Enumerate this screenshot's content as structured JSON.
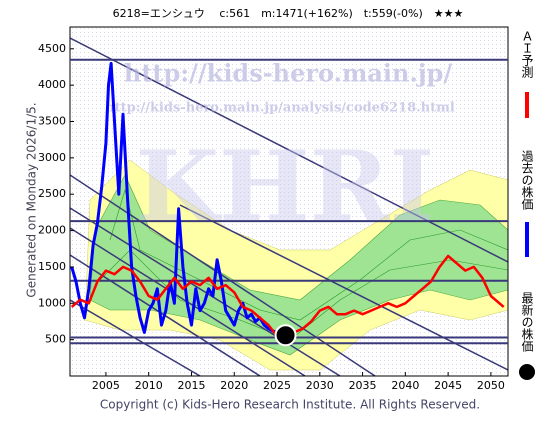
{
  "chart_data": {
    "type": "line",
    "title": "6218=エンシュウ　 c:561　m:1471(+162%)　t:559(-0%)　★★★",
    "side_note": "Generated on Monday 2026/1/5.",
    "footer": "Copyright (c) Kids-Hero Research Institute. All Rights Reserved.",
    "watermarks": [
      "http://kids-hero.main.jp/",
      "http://kids-hero.main.jp/analysis/code6218.html",
      "KHRI"
    ],
    "xlim": [
      2000.8,
      2052
    ],
    "xticks": [
      2005,
      2010,
      2015,
      2020,
      2025,
      2030,
      2035,
      2040,
      2045,
      2050
    ],
    "ylim": [
      0,
      4800
    ],
    "yticks": [
      500,
      1000,
      1500,
      2000,
      2500,
      3000,
      3500,
      4000,
      4500
    ],
    "hlines": [
      4350,
      2130,
      1310,
      530,
      450
    ],
    "hline_color": "#3a3a7a",
    "series": [
      {
        "name": "ＡＩ予測",
        "color": "#ff0000",
        "x": [
          2001,
          2002,
          2003,
          2004,
          2005,
          2006,
          2007,
          2008,
          2009,
          2010,
          2011,
          2012,
          2013,
          2014,
          2015,
          2016,
          2017,
          2018,
          2019,
          2020,
          2021,
          2022,
          2023,
          2024,
          2025,
          2026,
          2027,
          2028,
          2029,
          2030,
          2031,
          2032,
          2033,
          2034,
          2035,
          2036,
          2037,
          2038,
          2039,
          2040,
          2041,
          2042,
          2043,
          2044,
          2045,
          2046,
          2047,
          2048,
          2049,
          2050,
          2051.5
        ],
        "values": [
          950,
          1050,
          1000,
          1300,
          1450,
          1400,
          1500,
          1450,
          1300,
          1100,
          1050,
          1200,
          1350,
          1200,
          1300,
          1250,
          1350,
          1200,
          1250,
          1150,
          950,
          900,
          800,
          700,
          550,
          500,
          600,
          650,
          750,
          900,
          950,
          850,
          850,
          900,
          850,
          900,
          950,
          1000,
          950,
          1000,
          1100,
          1200,
          1300,
          1500,
          1650,
          1550,
          1450,
          1500,
          1350,
          1100,
          950
        ]
      },
      {
        "name": "過去の株価",
        "color": "#0000ff",
        "x": [
          2001,
          2001.5,
          2002,
          2002.5,
          2003,
          2003.5,
          2004,
          2004.5,
          2005,
          2005.3,
          2005.6,
          2006,
          2006.5,
          2007,
          2007.5,
          2008,
          2008.5,
          2009,
          2009.5,
          2010,
          2010.5,
          2011,
          2011.5,
          2012,
          2012.5,
          2013,
          2013.5,
          2014,
          2014.5,
          2015,
          2015.5,
          2016,
          2016.5,
          2017,
          2017.5,
          2018,
          2018.5,
          2019,
          2019.5,
          2020,
          2020.5,
          2021,
          2021.5,
          2022,
          2022.5,
          2023,
          2023.5,
          2024,
          2024.5,
          2025
        ],
        "values": [
          1500,
          1300,
          1000,
          800,
          1200,
          1800,
          2100,
          2600,
          3200,
          4000,
          4300,
          3500,
          2500,
          3600,
          2500,
          1500,
          1100,
          800,
          600,
          900,
          1000,
          1200,
          700,
          900,
          1300,
          1000,
          2300,
          1500,
          1000,
          700,
          1200,
          900,
          1000,
          1200,
          1100,
          1600,
          1300,
          900,
          800,
          700,
          900,
          1000,
          800,
          850,
          750,
          800,
          700,
          650,
          620,
          600
        ]
      },
      {
        "name": "最新の株価",
        "color": "#000000",
        "x": [
          2026
        ],
        "values": [
          561
        ]
      }
    ]
  }
}
